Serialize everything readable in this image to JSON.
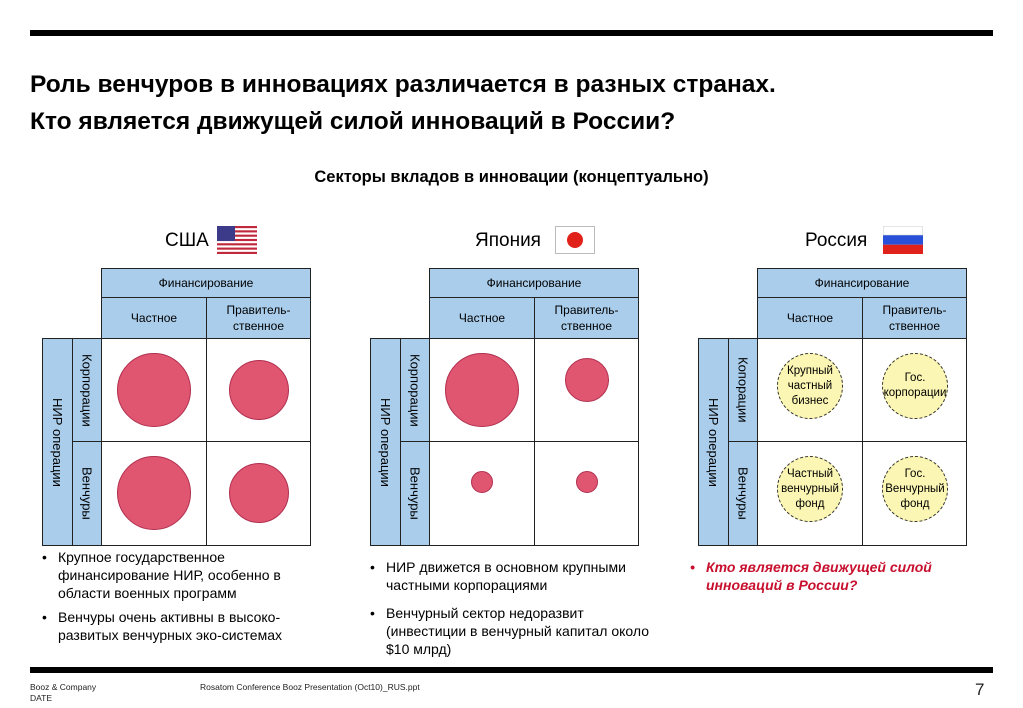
{
  "title": {
    "line1": "Роль венчуров в инновациях различается в разных странах.",
    "line2": "Кто является движущей силой инноваций в России?"
  },
  "subtitle": "Секторы вкладов в инновации (концептуально)",
  "matrix_labels": {
    "funding": "Финансирование",
    "private": "Частное",
    "government": "Правитель-ственное",
    "rd_ops": "НИР операции",
    "corporations": "Корпорации",
    "ventures": "Венчуры"
  },
  "countries": [
    {
      "name": "США",
      "flag": "us-flag-icon",
      "bubbles": {
        "corp_private": "large",
        "corp_gov": "medium",
        "venture_private": "large",
        "venture_gov": "medium"
      },
      "bullets": [
        "Крупное государственное финансирование НИР, особенно в области военных программ",
        "Венчуры очень активны в высоко-развитых венчурных эко-системах"
      ]
    },
    {
      "name": "Япония",
      "flag": "japan-flag-icon",
      "bubbles": {
        "corp_private": "large",
        "corp_gov": "small",
        "venture_private": "tiny",
        "venture_gov": "tiny"
      },
      "bullets": [
        "НИР движется в основном крупными частными корпорациями",
        "Венчурный сектор недоразвит (инвестиции в венчурный капитал около $10 млрд)"
      ]
    },
    {
      "name": "Россия",
      "flag": "russia-flag-icon",
      "corporations_label": "Копорации",
      "bubbles": {
        "corp_private": "Крупный частный бизнес",
        "corp_gov": "Гос. корпорации",
        "venture_private": "Частный венчурный фонд",
        "venture_gov": "Гос. Венчурный фонд"
      },
      "bullets": [
        "Кто является движущей силой инноваций в России?"
      ]
    }
  ],
  "colors": {
    "header": "#a9cdeb",
    "bubble": "#e05570",
    "russia_bubble": "#fbf6b3",
    "question": "#c8102e"
  },
  "footer": {
    "company": "Booz & Company",
    "date": "DATE",
    "file": "Rosatom Conference Booz Presentation (Oct10)_RUS.ppt",
    "page": "7"
  }
}
